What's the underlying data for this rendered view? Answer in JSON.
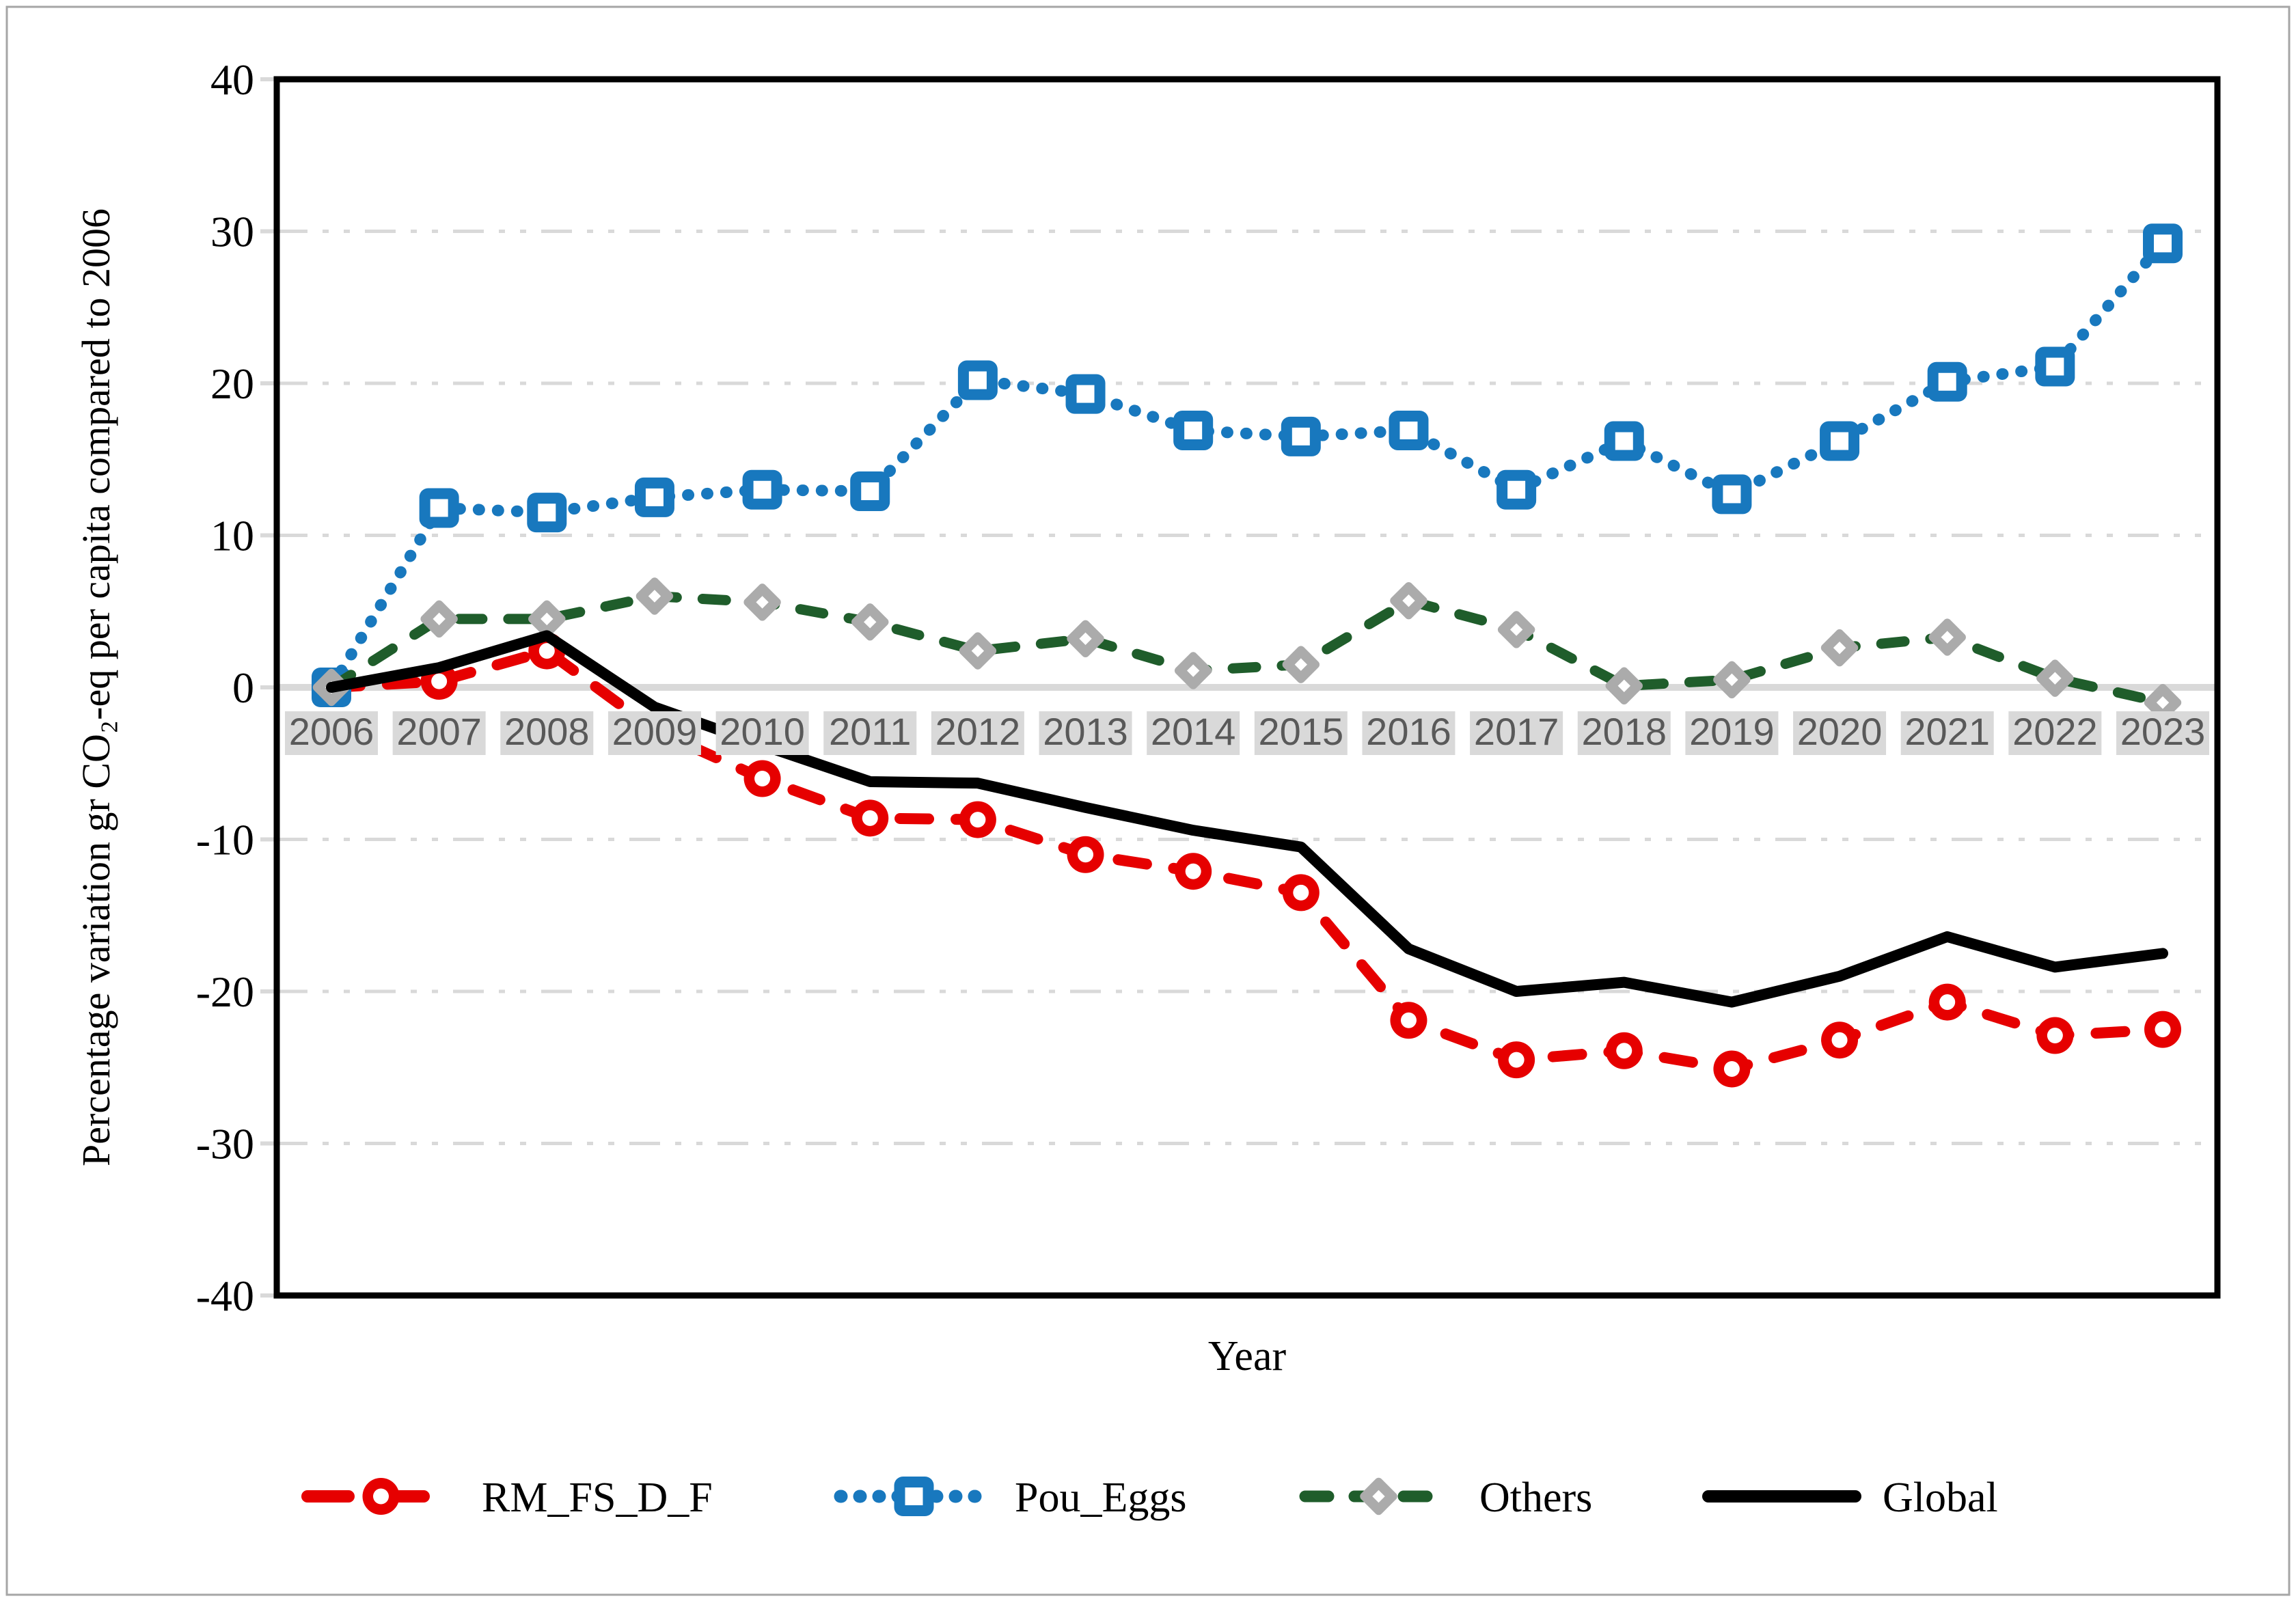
{
  "figure": {
    "background": "#ffffff",
    "border_color": "#a6a6a6"
  },
  "chart_data": {
    "type": "line",
    "title": "",
    "xlabel": "Year",
    "ylabel": "Percentage variation gr CO₂-eq per capita compared to 2006",
    "categories": [
      "2006",
      "2007",
      "2008",
      "2009",
      "2010",
      "2011",
      "2012",
      "2013",
      "2014",
      "2015",
      "2016",
      "2017",
      "2018",
      "2019",
      "2020",
      "2021",
      "2022",
      "2023"
    ],
    "ylim": [
      -40,
      40
    ],
    "ytick_step": 10,
    "ytick_labels": [
      "40",
      "30",
      "20",
      "10",
      "0",
      "-10",
      "-20",
      "-30",
      "-40"
    ],
    "grid": true,
    "gridline_color": "#d9d9d9",
    "zero_axis_color": "#d9d9d9",
    "category_label_bg": "#d9d9d9",
    "category_label_color": "#595959",
    "legend_position": "bottom",
    "series": [
      {
        "name": "RM_FS_D_F",
        "color": "#e60000",
        "marker": "circle",
        "marker_color": "#e60000",
        "line_style": "dashed",
        "values": [
          0,
          0.4,
          2.4,
          -2.8,
          -6.0,
          -8.6,
          -8.7,
          -11.0,
          -12.1,
          -13.5,
          -21.9,
          -24.5,
          -23.9,
          -25.1,
          -23.2,
          -20.7,
          -22.9,
          -22.5
        ]
      },
      {
        "name": "Pou_Eggs",
        "color": "#1878be",
        "marker": "square",
        "marker_color": "#1878be",
        "line_style": "dotted",
        "values": [
          0,
          11.8,
          11.5,
          12.5,
          13.0,
          12.9,
          20.2,
          19.3,
          16.9,
          16.5,
          16.9,
          13.0,
          16.2,
          12.7,
          16.2,
          20.1,
          21.1,
          29.2
        ]
      },
      {
        "name": "Others",
        "color": "#1f5d2b",
        "marker": "diamond",
        "marker_color": "#ababab",
        "line_style": "dashed",
        "values": [
          0,
          4.5,
          4.5,
          6.0,
          5.6,
          4.3,
          2.4,
          3.2,
          1.1,
          1.5,
          5.7,
          3.8,
          0.1,
          0.5,
          2.6,
          3.3,
          0.6,
          -1.0
        ]
      },
      {
        "name": "Global",
        "color": "#000000",
        "marker": "none",
        "marker_color": "#000000",
        "line_style": "solid",
        "values": [
          0,
          1.3,
          3.4,
          -1.3,
          -3.8,
          -6.2,
          -6.3,
          -7.9,
          -9.4,
          -10.5,
          -17.2,
          -20.0,
          -19.4,
          -20.7,
          -19.0,
          -16.4,
          -18.4,
          -17.5
        ]
      }
    ]
  }
}
